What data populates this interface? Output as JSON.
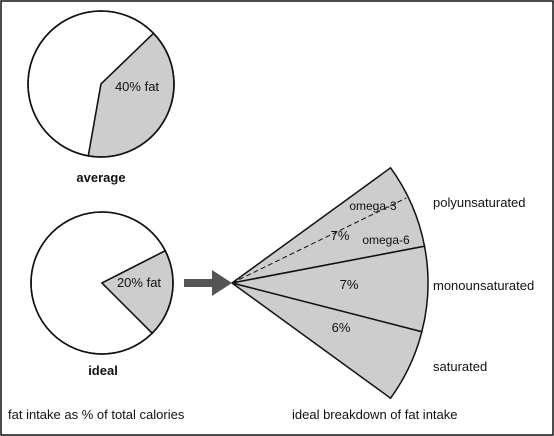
{
  "colors": {
    "background": "#ffffff",
    "slice_fill": "#cdcdcd",
    "outline": "#111111",
    "arrow": "#555555"
  },
  "chart_data": [
    {
      "type": "pie",
      "label": "average",
      "slices": [
        {
          "name": "fat",
          "value": 40,
          "text": "40% fat"
        },
        {
          "name": "other",
          "value": 60,
          "text": ""
        }
      ]
    },
    {
      "type": "pie",
      "label": "ideal",
      "slices": [
        {
          "name": "fat",
          "value": 20,
          "text": "20% fat"
        },
        {
          "name": "other",
          "value": 80,
          "text": ""
        }
      ]
    },
    {
      "type": "pie",
      "label": "ideal breakdown of fat intake",
      "slices": [
        {
          "name": "polyunsaturated",
          "value": 7,
          "text": "7%",
          "legend": "polyunsaturated",
          "subdivisions": [
            {
              "name": "omega-3",
              "text": "omega-3"
            },
            {
              "name": "omega-6",
              "text": "omega-6"
            }
          ]
        },
        {
          "name": "monounsaturated",
          "value": 7,
          "text": "7%",
          "legend": "monounsaturated"
        },
        {
          "name": "saturated",
          "value": 6,
          "text": "6%",
          "legend": "saturated"
        }
      ]
    }
  ],
  "captions": {
    "left": "fat intake as % of total calories",
    "right": "ideal breakdown of fat intake"
  }
}
